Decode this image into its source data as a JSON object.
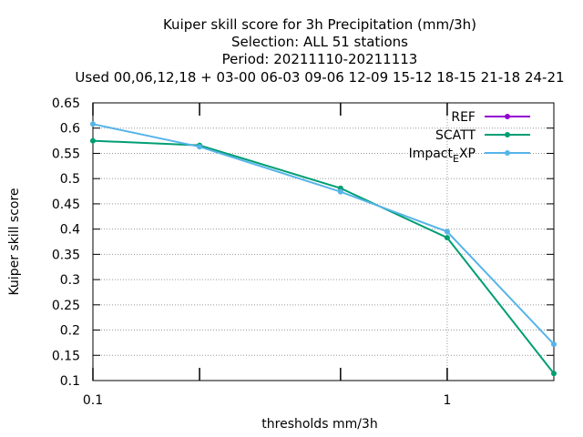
{
  "chart_data": {
    "type": "line",
    "title_lines": [
      "Kuiper skill score  for 3h Precipitation (mm/3h)",
      "Selection: ALL     51 stations",
      "Period: 20211110-20211113",
      "Used  00,06,12,18  + 03-00 06-03 09-06 12-09 15-12 18-15 21-18 24-21"
    ],
    "xlabel": "thresholds mm/3h",
    "ylabel": "Kuiper skill score",
    "x_scale": "log",
    "xlim": [
      0.1,
      2
    ],
    "ylim": [
      0.1,
      0.65
    ],
    "x_ticks": [
      {
        "value": 0.1,
        "label": "0.1"
      },
      {
        "value": 0.2,
        "label": ""
      },
      {
        "value": 0.5,
        "label": ""
      },
      {
        "value": 1,
        "label": "1"
      }
    ],
    "y_ticks": [
      "0.1",
      "0.15",
      "0.2",
      "0.25",
      "0.3",
      "0.35",
      "0.4",
      "0.45",
      "0.5",
      "0.55",
      "0.6",
      "0.65"
    ],
    "grid": "dotted at x=1",
    "legend_position": "top-right",
    "series": [
      {
        "name": "REF",
        "legend_main": "REF",
        "legend_sub": "",
        "legend_tail": "",
        "color": "#9400d3",
        "x": [],
        "y": []
      },
      {
        "name": "SCATT",
        "legend_main": "SCATT",
        "legend_sub": "",
        "legend_tail": "",
        "color": "#009e73",
        "x": [
          0.1,
          0.2,
          0.5,
          1,
          2
        ],
        "y": [
          0.575,
          0.566,
          0.481,
          0.383,
          0.114
        ]
      },
      {
        "name": "Impact_EXP",
        "legend_main": "Impact",
        "legend_sub": "E",
        "legend_tail": "XP",
        "color": "#56b4e9",
        "x": [
          0.1,
          0.2,
          0.5,
          1,
          2
        ],
        "y": [
          0.608,
          0.563,
          0.474,
          0.395,
          0.172
        ]
      }
    ]
  }
}
